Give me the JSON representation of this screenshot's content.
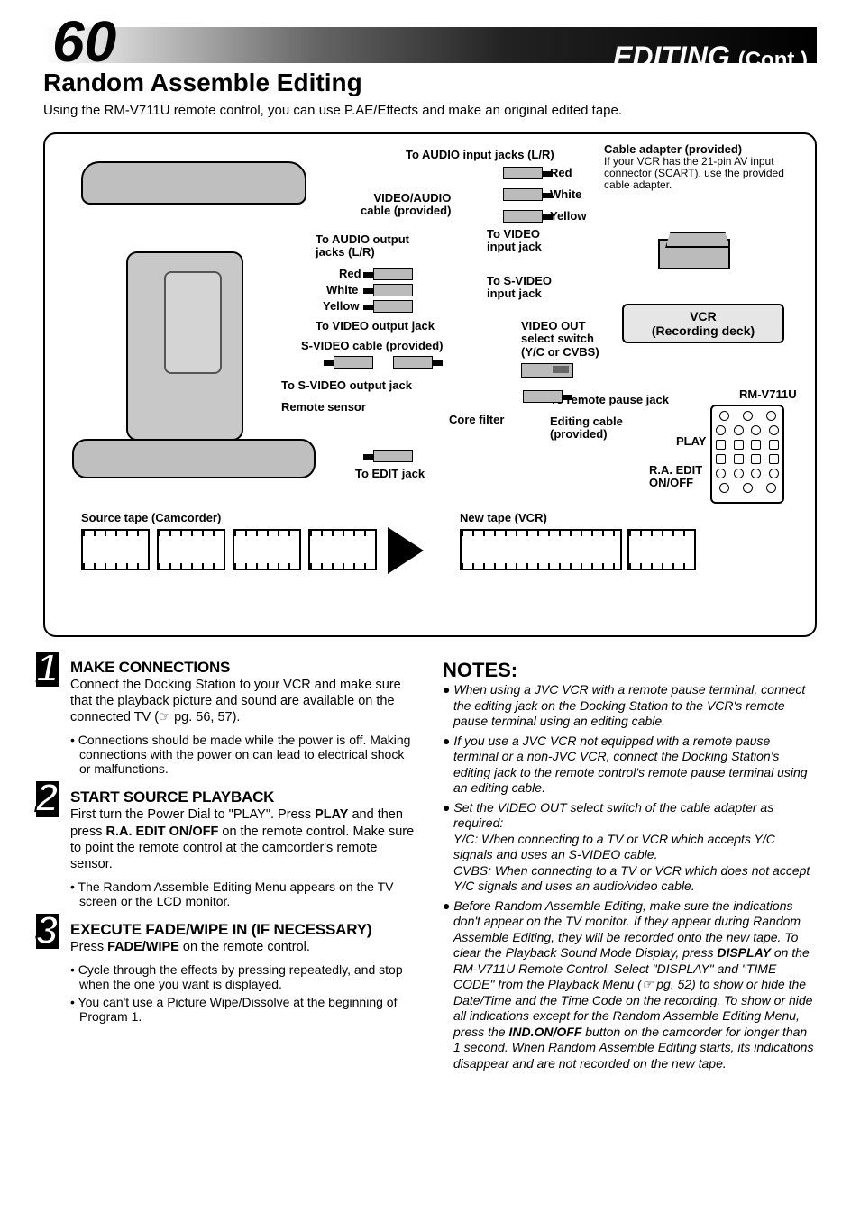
{
  "header": {
    "page_number": "60",
    "section": "EDITING",
    "cont": "(Cont.)",
    "bar_gradient_start": "#ffffff",
    "bar_gradient_end": "#000000"
  },
  "subtitle": "Random Assemble Editing",
  "intro": "Using the RM-V711U remote control, you can use P.AE/Effects and make an original edited tape.",
  "diagram": {
    "labels": {
      "audio_in": "To AUDIO input jacks (L/R)",
      "red": "Red",
      "white": "White",
      "yellow": "Yellow",
      "video_audio_cable": "VIDEO/AUDIO\ncable (provided)",
      "audio_out": "To AUDIO output\njacks (L/R)",
      "video_in": "To VIDEO\ninput jack",
      "svideo_in": "To S-VIDEO\ninput jack",
      "video_out": "To VIDEO output jack",
      "svideo_cable": "S-VIDEO cable (provided)",
      "svideo_out": "To S-VIDEO output jack",
      "remote_sensor": "Remote sensor",
      "core_filter": "Core filter",
      "edit_jack": "To EDIT jack",
      "videoout_switch": "VIDEO OUT\nselect switch\n(Y/C or CVBS)",
      "cable_adapter_title": "Cable adapter (provided)",
      "cable_adapter_body": "If your VCR has the 21-pin AV input connector (SCART), use the provided cable adapter.",
      "vcr": "VCR\n(Recording deck)",
      "remote_pause": "To remote pause jack",
      "editing_cable": "Editing cable\n(provided)",
      "rm": "RM-V711U",
      "play": "PLAY",
      "raedit": "R.A. EDIT\nON/OFF",
      "source": "Source tape (Camcorder)",
      "newtape": "New tape (VCR)"
    }
  },
  "steps": [
    {
      "num": "1",
      "title": "MAKE CONNECTIONS",
      "body": "Connect the Docking Station to your VCR and make sure that the playback picture and sound are available on the connected TV (☞ pg. 56, 57).",
      "bullets": [
        "Connections should be made while the power is off. Making connections with the power on can lead to electrical shock or malfunctions."
      ]
    },
    {
      "num": "2",
      "title": "START SOURCE PLAYBACK",
      "body_html": "First turn the Power Dial to \"PLAY\". Press <b>PLAY</b> and then press <b>R.A. EDIT ON/OFF</b> on the remote control. Make sure to point the remote control at the camcorder's remote sensor.",
      "bullets": [
        "The Random Assemble Editing Menu appears on the TV screen or the LCD monitor."
      ]
    },
    {
      "num": "3",
      "title": "EXECUTE FADE/WIPE IN (IF NECESSARY)",
      "body_html": "Press <b>FADE/WIPE</b> on the remote control.",
      "bullets": [
        "Cycle through the effects by pressing repeatedly, and stop when the one you want is displayed.",
        "You can't use a Picture Wipe/Dissolve at the beginning of Program 1."
      ]
    }
  ],
  "notes": {
    "title": "NOTES:",
    "items": [
      "When using a JVC VCR with a remote pause terminal, connect the editing jack on the Docking Station to the VCR's remote pause terminal using an editing cable.",
      "If you use a JVC VCR not equipped with a remote pause terminal or a non-JVC VCR, connect the Docking Station's editing jack to the remote control's remote pause terminal using an editing cable.",
      "Set the VIDEO OUT select switch of the cable adapter as required:\nY/C: When connecting to a TV or VCR which accepts Y/C signals and uses an S-VIDEO cable.\nCVBS: When connecting to a TV or VCR which does not accept Y/C signals and uses an audio/video cable.",
      "Before Random Assemble Editing, make sure the indications don't appear on the TV monitor. If they appear during Random Assemble Editing, they will be recorded onto the new tape. To clear the Playback Sound Mode Display, press <b>DISPLAY</b> on the RM-V711U Remote Control. Select \"DISPLAY\" and \"TIME CODE\" from the Playback Menu (☞ pg. 52) to show or hide the Date/Time and the Time Code on the recording. To show or hide all indications except for the Random Assemble Editing Menu, press the <b>IND.ON/OFF</b> button on the camcorder for longer than 1 second. When Random Assemble Editing starts, its indications disappear and are not recorded on the new tape."
    ]
  }
}
